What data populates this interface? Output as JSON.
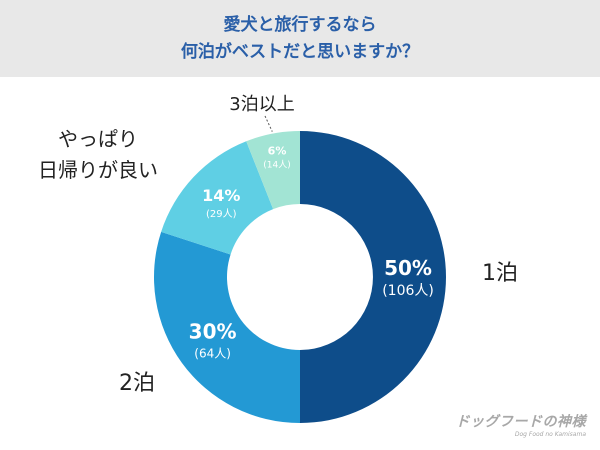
{
  "header": {
    "title_line1": "愛犬と旅行するなら",
    "title_line2": "何泊がベストだと思いますか？"
  },
  "chart_data": {
    "type": "pie",
    "donut": true,
    "categories": [
      "1泊",
      "2泊",
      "やっぱり日帰りが良い",
      "3泊以上"
    ],
    "values": [
      50,
      30,
      14,
      6
    ],
    "counts": [
      106,
      64,
      29,
      14
    ],
    "percent_labels": [
      "50%",
      "30%",
      "14%",
      "6%"
    ],
    "count_labels": [
      "(106人)",
      "(64人)",
      "(29人)",
      "(14人)"
    ],
    "category_labels": [
      [
        "1泊"
      ],
      [
        "2泊"
      ],
      [
        "やっぱり",
        "日帰りが良い"
      ],
      [
        "3泊以上"
      ]
    ],
    "colors": [
      "#0e4d8a",
      "#2399d4",
      "#5fcfe4",
      "#a2e4d4"
    ],
    "legend": "none"
  },
  "watermark": {
    "text": "ドッグフードの神様",
    "subtext": "Dog Food no Kamisama"
  }
}
